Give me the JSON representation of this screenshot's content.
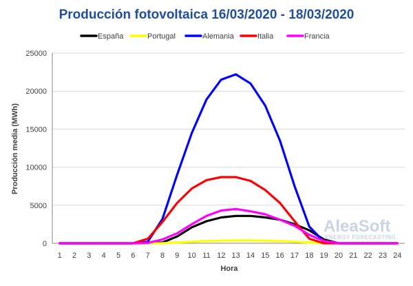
{
  "chart_data": {
    "type": "line",
    "title": "Producción fotovoltaica 16/03/2020 - 18/03/2020",
    "xlabel": "Hora",
    "ylabel": "Producción media (MWh)",
    "ylim": [
      0,
      25000
    ],
    "yticks": [
      0,
      5000,
      10000,
      15000,
      20000,
      25000
    ],
    "categories": [
      "1",
      "2",
      "3",
      "4",
      "5",
      "6",
      "7",
      "8",
      "9",
      "10",
      "11",
      "12",
      "13",
      "14",
      "15",
      "16",
      "17",
      "18",
      "19",
      "20",
      "21",
      "22",
      "23",
      "24"
    ],
    "grid": true,
    "legend_position": "top",
    "series": [
      {
        "name": "España",
        "color": "#000000",
        "values": [
          0,
          0,
          0,
          0,
          0,
          0,
          0,
          100,
          900,
          2100,
          2900,
          3400,
          3600,
          3600,
          3400,
          3100,
          2500,
          1700,
          500,
          0,
          0,
          0,
          0,
          0
        ]
      },
      {
        "name": "Portugal",
        "color": "#ffff00",
        "values": [
          0,
          0,
          0,
          0,
          0,
          0,
          0,
          20,
          100,
          200,
          300,
          350,
          380,
          380,
          350,
          300,
          200,
          100,
          20,
          0,
          0,
          0,
          0,
          0
        ]
      },
      {
        "name": "Alemania",
        "color": "#0000ff",
        "values": [
          0,
          0,
          0,
          0,
          0,
          0,
          200,
          3200,
          9000,
          14500,
          18900,
          21500,
          22200,
          21000,
          18100,
          13500,
          7500,
          2200,
          200,
          0,
          0,
          0,
          0,
          0
        ]
      },
      {
        "name": "Italia",
        "color": "#ff0000",
        "values": [
          0,
          0,
          0,
          0,
          0,
          0,
          600,
          2800,
          5300,
          7200,
          8300,
          8700,
          8700,
          8200,
          7000,
          5300,
          2900,
          600,
          0,
          0,
          0,
          0,
          0,
          0
        ]
      },
      {
        "name": "Francia",
        "color": "#ff00ff",
        "values": [
          0,
          0,
          0,
          0,
          0,
          0,
          50,
          500,
          1300,
          2500,
          3600,
          4300,
          4500,
          4200,
          3800,
          3100,
          2300,
          1100,
          300,
          0,
          0,
          0,
          0,
          0
        ]
      }
    ]
  },
  "watermark": {
    "brand": "AleaSoft",
    "tagline": "ENERGY FORECASTING"
  },
  "colors": {
    "title": "#1f4e9e"
  }
}
